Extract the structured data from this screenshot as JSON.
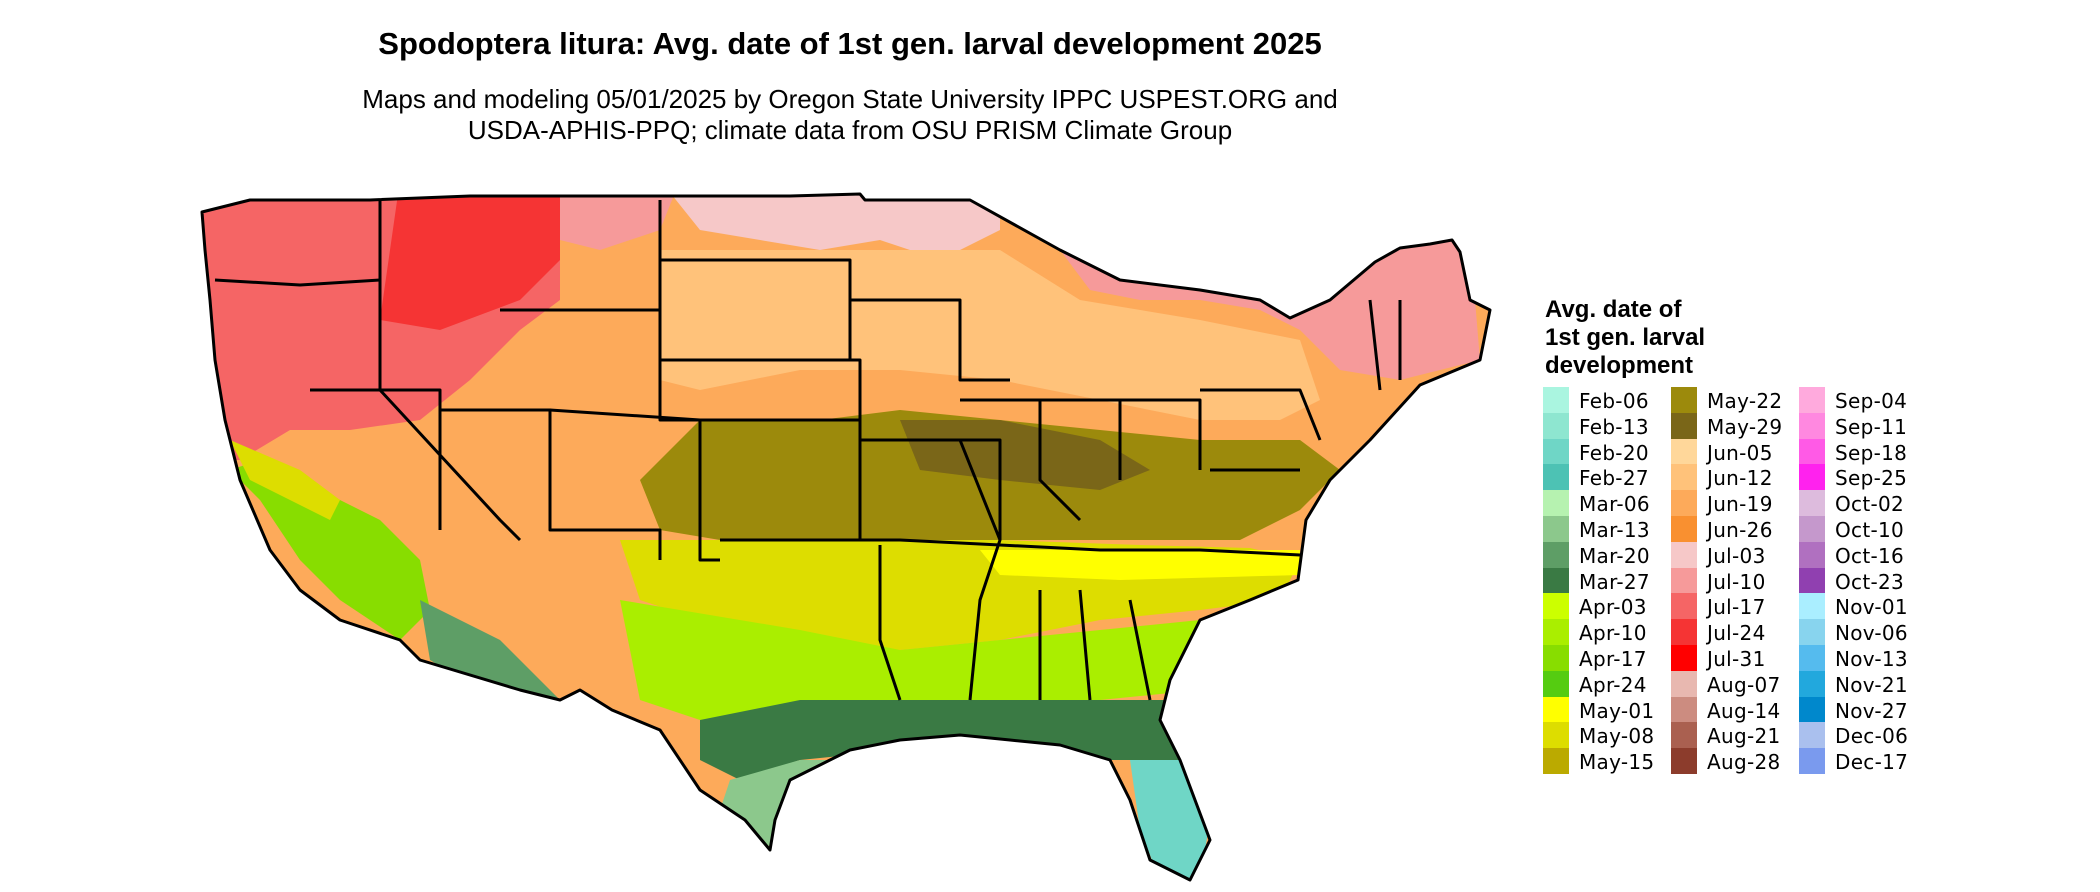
{
  "title": "Spodoptera litura: Avg. date of 1st gen. larval development 2025",
  "subtitle": {
    "line1": "Maps and modeling 05/01/2025 by Oregon State University IPPC USPEST.ORG and",
    "line2": "USDA-APHIS-PPQ; climate data from OSU PRISM Climate Group"
  },
  "legend": {
    "title_lines": [
      "Avg. date of",
      "1st gen. larval",
      "development"
    ],
    "columns": [
      [
        {
          "label": "Feb-06",
          "color": "#aaf5e0"
        },
        {
          "label": "Feb-13",
          "color": "#8ee6d0"
        },
        {
          "label": "Feb-20",
          "color": "#6fd6c6"
        },
        {
          "label": "Feb-27",
          "color": "#4dc2b4"
        },
        {
          "label": "Mar-06",
          "color": "#b6f2b0"
        },
        {
          "label": "Mar-13",
          "color": "#8cc88c"
        },
        {
          "label": "Mar-20",
          "color": "#5e9e66"
        },
        {
          "label": "Mar-27",
          "color": "#3a7a44"
        },
        {
          "label": "Apr-03",
          "color": "#ccff00"
        },
        {
          "label": "Apr-10",
          "color": "#aaee00"
        },
        {
          "label": "Apr-17",
          "color": "#88dd00"
        },
        {
          "label": "Apr-24",
          "color": "#55cc11"
        },
        {
          "label": "May-01",
          "color": "#ffff00"
        },
        {
          "label": "May-08",
          "color": "#dddd00"
        },
        {
          "label": "May-15",
          "color": "#bbaa00"
        }
      ],
      [
        {
          "label": "May-22",
          "color": "#9c8a0c"
        },
        {
          "label": "May-29",
          "color": "#7a6618"
        },
        {
          "label": "Jun-05",
          "color": "#ffd79a"
        },
        {
          "label": "Jun-12",
          "color": "#ffc27a"
        },
        {
          "label": "Jun-19",
          "color": "#fdaa5a"
        },
        {
          "label": "Jun-26",
          "color": "#f99030"
        },
        {
          "label": "Jul-03",
          "color": "#f6c8c8"
        },
        {
          "label": "Jul-10",
          "color": "#f69a9a"
        },
        {
          "label": "Jul-17",
          "color": "#f56565"
        },
        {
          "label": "Jul-24",
          "color": "#f53434"
        },
        {
          "label": "Jul-31",
          "color": "#ff0000"
        },
        {
          "label": "Aug-07",
          "color": "#e8b8b0"
        },
        {
          "label": "Aug-14",
          "color": "#cc8c80"
        },
        {
          "label": "Aug-21",
          "color": "#aa6050"
        },
        {
          "label": "Aug-28",
          "color": "#8c3c2c"
        }
      ],
      [
        {
          "label": "Sep-04",
          "color": "#ffaadd"
        },
        {
          "label": "Sep-11",
          "color": "#ff88e0"
        },
        {
          "label": "Sep-18",
          "color": "#ff5ae6"
        },
        {
          "label": "Sep-25",
          "color": "#ff22ee"
        },
        {
          "label": "Oct-02",
          "color": "#ddbbdd"
        },
        {
          "label": "Oct-10",
          "color": "#c598cc"
        },
        {
          "label": "Oct-16",
          "color": "#b070c0"
        },
        {
          "label": "Oct-23",
          "color": "#9040b0"
        },
        {
          "label": "Nov-01",
          "color": "#aaeeff"
        },
        {
          "label": "Nov-06",
          "color": "#88d4ee"
        },
        {
          "label": "Nov-13",
          "color": "#55bbee"
        },
        {
          "label": "Nov-21",
          "color": "#22a8dd"
        },
        {
          "label": "Nov-27",
          "color": "#0088cc"
        },
        {
          "label": "Dec-06",
          "color": "#aac0ee"
        },
        {
          "label": "Dec-17",
          "color": "#7a9aee"
        }
      ]
    ]
  }
}
